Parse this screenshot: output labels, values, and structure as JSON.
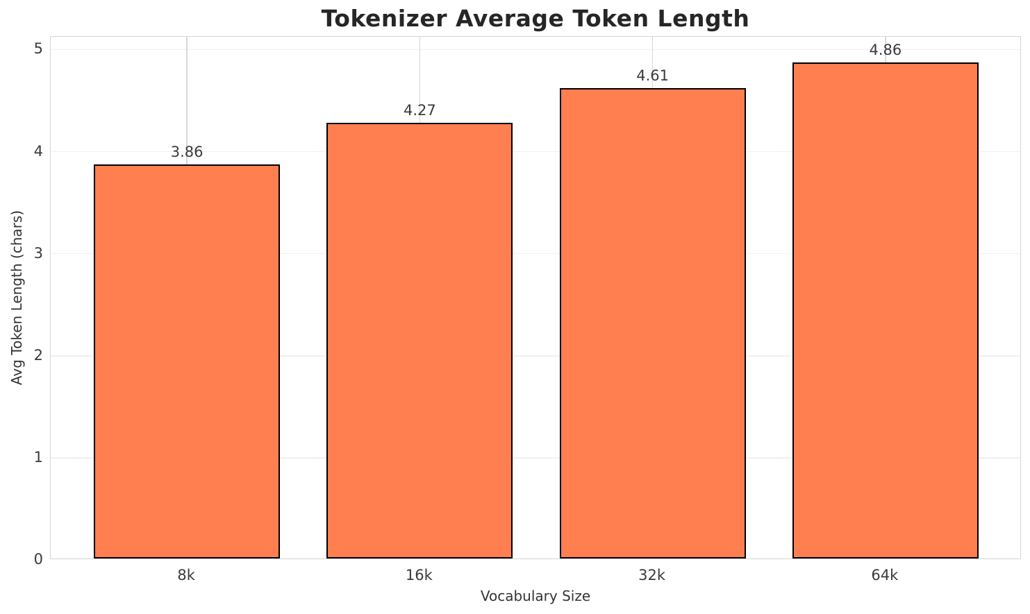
{
  "chart_data": {
    "type": "bar",
    "title": "Tokenizer Average Token Length",
    "xlabel": "Vocabulary Size",
    "ylabel": "Avg Token Length (chars)",
    "categories": [
      "8k",
      "16k",
      "32k",
      "64k"
    ],
    "values": [
      3.86,
      4.27,
      4.61,
      4.86
    ],
    "value_labels": [
      "3.86",
      "4.27",
      "4.61",
      "4.86"
    ],
    "yticks": [
      0,
      1,
      2,
      3,
      4,
      5
    ],
    "ytick_labels": [
      "0",
      "1",
      "2",
      "3",
      "4",
      "5"
    ],
    "ylim": [
      0,
      5.125
    ],
    "xlim": [
      -0.585,
      3.585
    ],
    "bar_width": 0.8,
    "grid": true,
    "legend": "none",
    "colors": {
      "bar_fill": "#FF7F50",
      "bar_edge": "#000000",
      "grid_horizontal": "#F0F0F0",
      "grid_vertical": "#D7D7D7",
      "spine": "#D4D4D4",
      "text": "#3A3A3A",
      "title": "#262626",
      "background": "#FFFFFF"
    }
  }
}
